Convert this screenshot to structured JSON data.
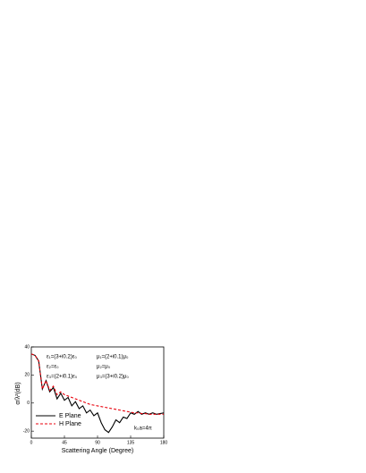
{
  "chart_data": {
    "type": "line",
    "xlabel": "Scattering Angle (Degree)",
    "ylabel": "σ/λ²(dB)",
    "x": [
      0,
      5,
      10,
      15,
      20,
      25,
      30,
      35,
      40,
      45,
      50,
      55,
      60,
      65,
      70,
      75,
      80,
      85,
      90,
      95,
      100,
      105,
      110,
      115,
      120,
      125,
      130,
      135,
      140,
      145,
      150,
      155,
      160,
      165,
      170,
      175,
      180
    ],
    "series": [
      {
        "name": "E Plane",
        "color": "#000000",
        "dash": "solid",
        "values": [
          35,
          34,
          30,
          10,
          16,
          8,
          11,
          3,
          7,
          2,
          4,
          -2,
          1,
          -4,
          -2,
          -7,
          -5,
          -9,
          -7,
          -14,
          -19,
          -21,
          -17,
          -12,
          -14,
          -10,
          -11,
          -7,
          -8,
          -6,
          -8,
          -7,
          -8,
          -7,
          -8,
          -7.5,
          -7
        ]
      },
      {
        "name": "H Plane",
        "color": "#e8000b",
        "dash": "dashed",
        "values": [
          35,
          34,
          30,
          10,
          16,
          9,
          12,
          6,
          8,
          6,
          5,
          4,
          3,
          2,
          1,
          0,
          -1,
          -1.5,
          -2,
          -2.5,
          -3,
          -3.5,
          -4,
          -4.5,
          -5,
          -5.5,
          -6,
          -6.5,
          -7,
          -7,
          -7.5,
          -7.5,
          -8,
          -8,
          -8,
          -8,
          -8
        ]
      }
    ],
    "xlim": [
      0,
      180
    ],
    "xticks": [
      0,
      45,
      90,
      135,
      180
    ],
    "ylim": [
      -25,
      40
    ],
    "yticks": [
      -20,
      0,
      20,
      40
    ],
    "legend": "lower left",
    "annotations": [
      "ε₁=(3+i0.2)ε₀",
      "μ₁=(2+i0.1)μ₀",
      "ε₂=ε₀",
      "μ₂=μ₀",
      "ε₃=(2+i0.1)ε₀",
      "μ₃=(3+i0.2)μ₀",
      "k₀a=4π"
    ]
  }
}
